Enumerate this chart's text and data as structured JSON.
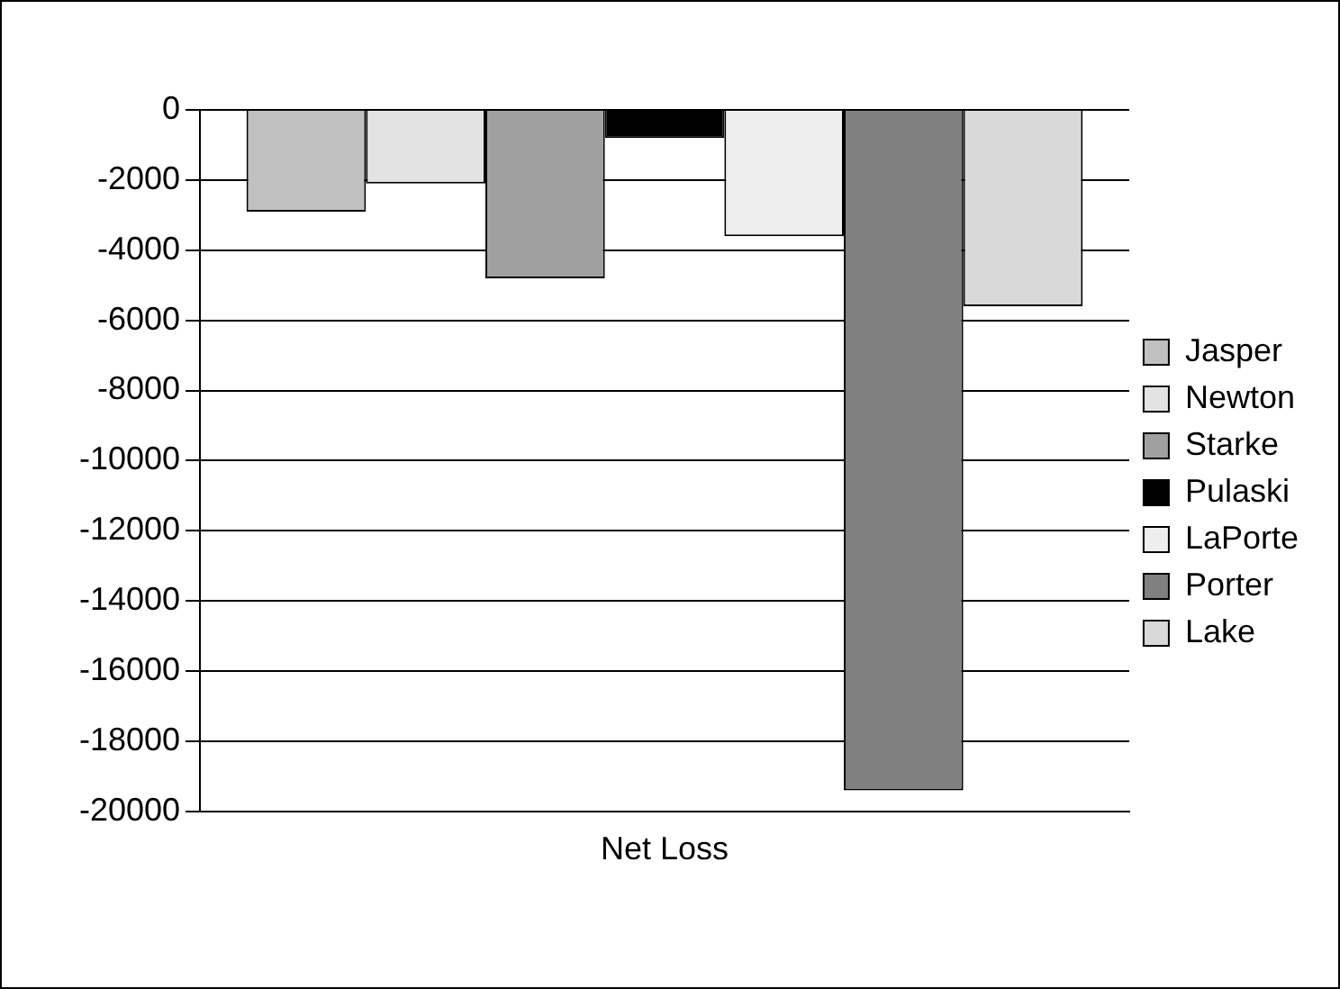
{
  "chart_data": {
    "type": "bar",
    "categories": [
      "Net Loss"
    ],
    "series": [
      {
        "name": "Jasper",
        "color": "#c0c0c0",
        "values": [
          -2900
        ]
      },
      {
        "name": "Newton",
        "color": "#e3e3e3",
        "values": [
          -2100
        ]
      },
      {
        "name": "Starke",
        "color": "#a0a0a0",
        "values": [
          -4800
        ]
      },
      {
        "name": "Pulaski",
        "color": "#000000",
        "values": [
          -800
        ]
      },
      {
        "name": "LaPorte",
        "color": "#eeeeee",
        "values": [
          -3600
        ]
      },
      {
        "name": "Porter",
        "color": "#808080",
        "values": [
          -19400
        ]
      },
      {
        "name": "Lake",
        "color": "#d9d9d9",
        "values": [
          -5600
        ]
      }
    ],
    "ylim": [
      -20000,
      0
    ],
    "yticks": [
      -20000,
      -18000,
      -16000,
      -14000,
      -12000,
      -10000,
      -8000,
      -6000,
      -4000,
      -2000,
      0
    ],
    "grid": "y",
    "legend": "right"
  }
}
